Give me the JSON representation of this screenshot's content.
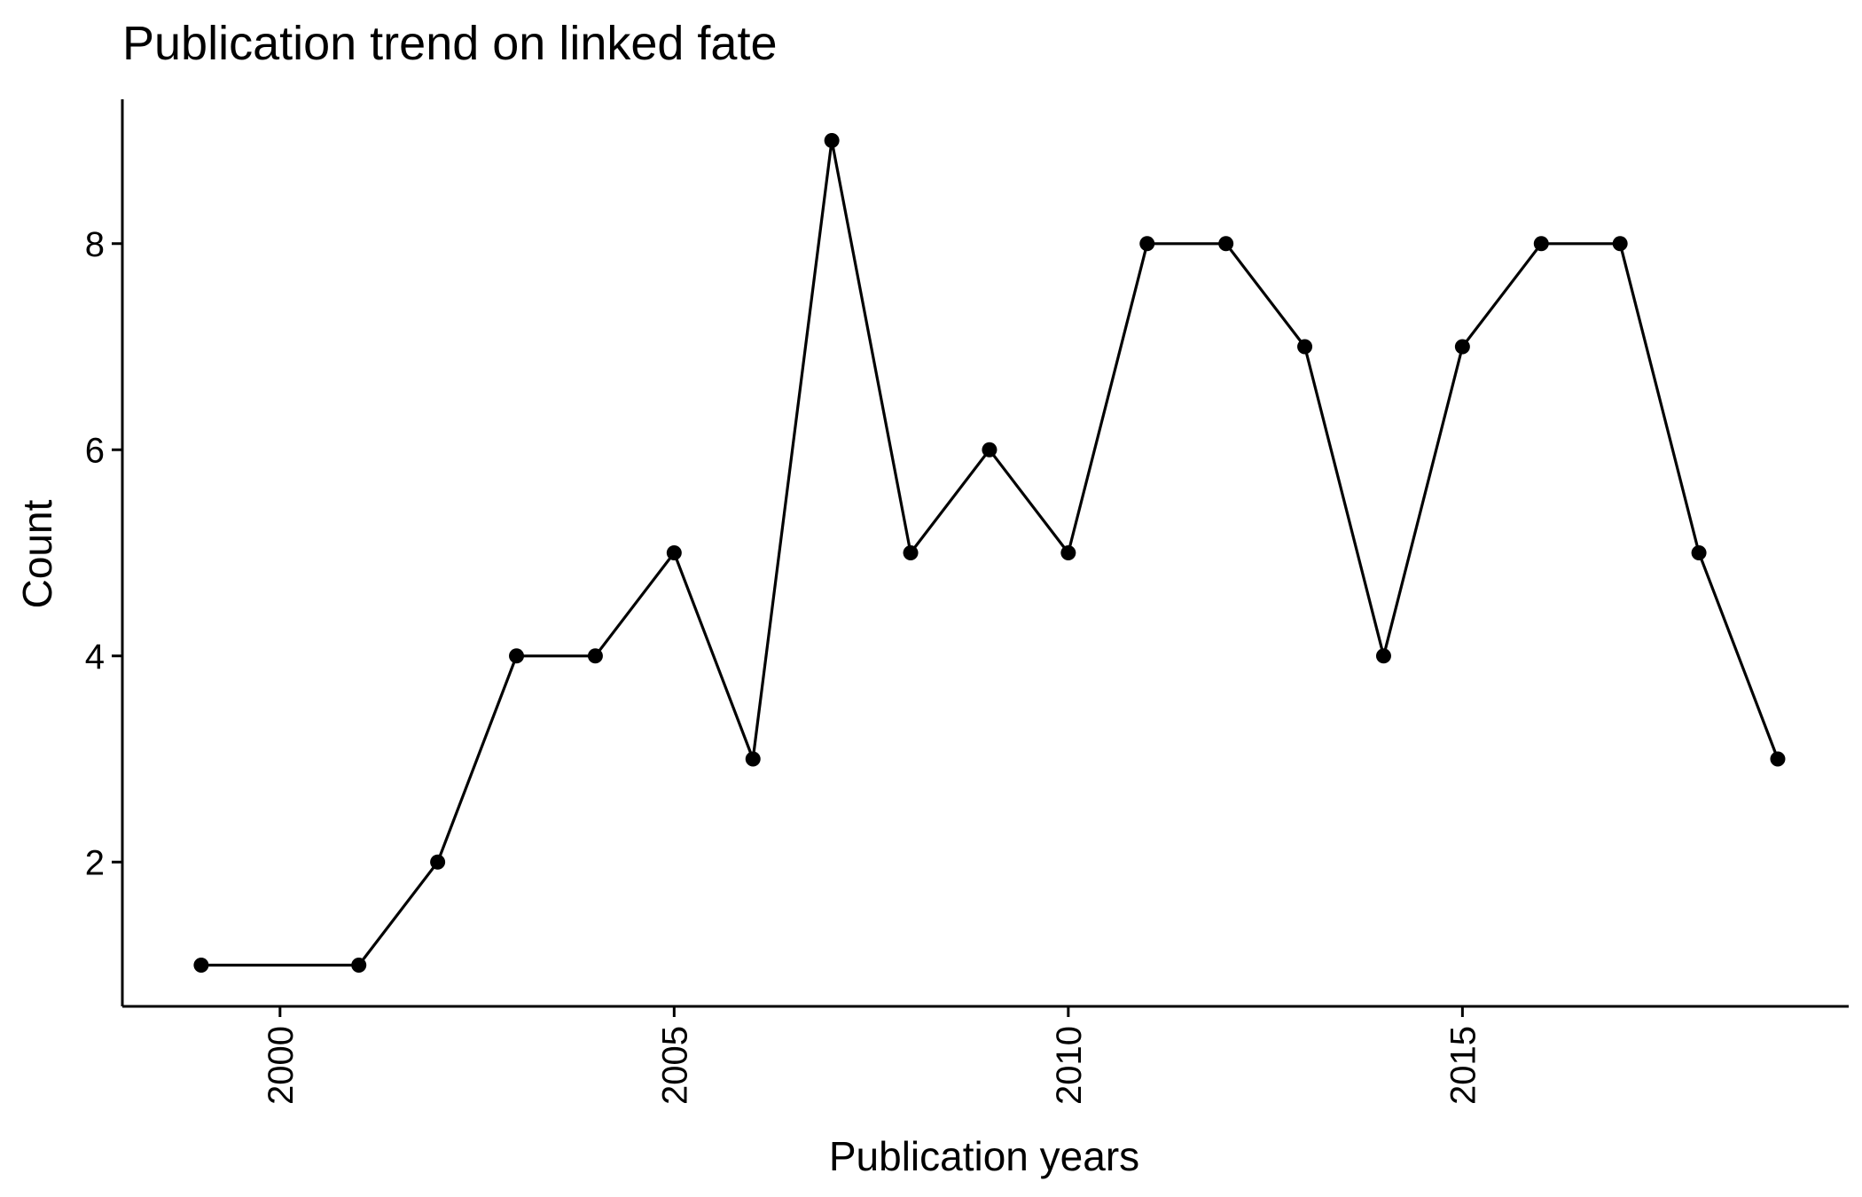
{
  "chart_data": {
    "type": "line",
    "title": "Publication trend on linked fate",
    "xlabel": "Publication years",
    "ylabel": "Count",
    "xlim": [
      1998,
      2019.9
    ],
    "ylim": [
      0.6,
      9.4
    ],
    "xticks": [
      2000,
      2005,
      2010,
      2015
    ],
    "yticks": [
      2,
      4,
      6,
      8
    ],
    "grid": false,
    "legend": "none",
    "series": [
      {
        "x": [
          1999,
          2001,
          2002,
          2003,
          2004,
          2005,
          2006,
          2007,
          2008,
          2009,
          2010,
          2011,
          2012,
          2013,
          2014,
          2015,
          2016,
          2017,
          2018,
          2019
        ],
        "y": [
          1,
          1,
          2,
          4,
          4,
          5,
          3,
          9,
          5,
          6,
          5,
          8,
          8,
          7,
          4,
          7,
          8,
          8,
          5,
          3
        ],
        "color": "#000000"
      }
    ]
  }
}
